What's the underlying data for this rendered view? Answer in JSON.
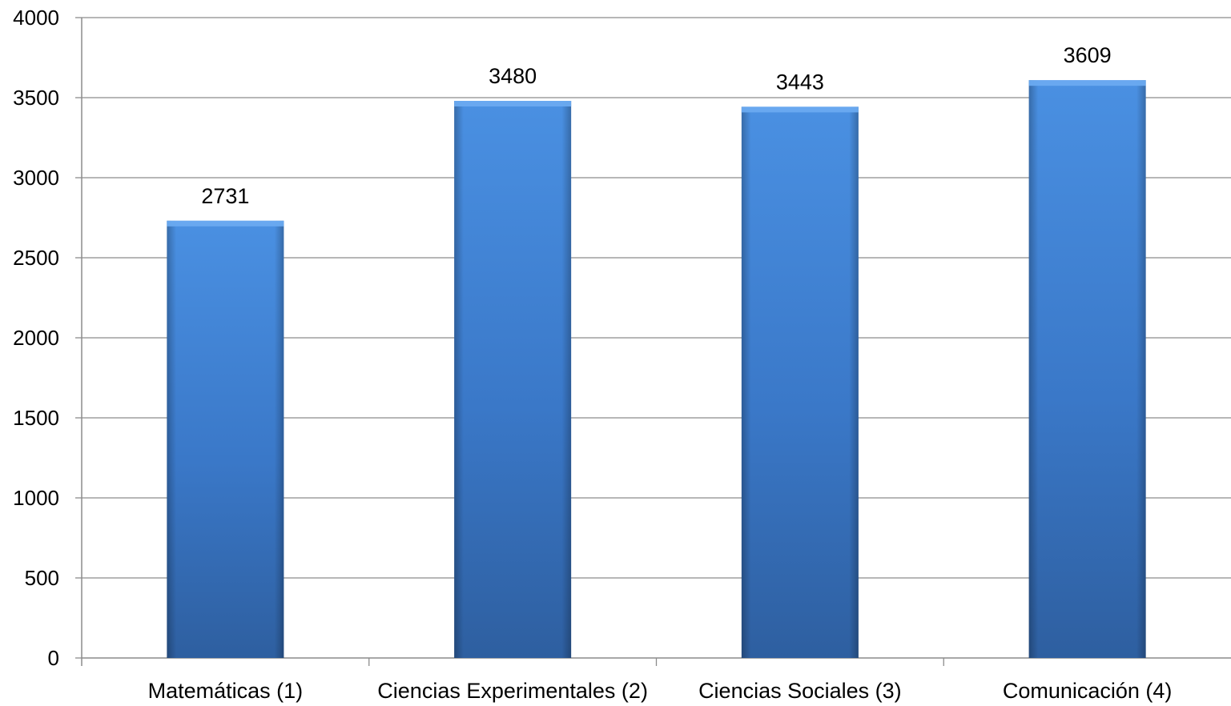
{
  "chart_data": {
    "type": "bar",
    "title": "",
    "xlabel": "",
    "ylabel": "",
    "categories": [
      "Matemáticas (1)",
      "Ciencias Experimentales (2)",
      "Ciencias Sociales (3)",
      "Comunicación (4)"
    ],
    "values": [
      2731,
      3480,
      3443,
      3609
    ],
    "data_labels": [
      "2731",
      "3480",
      "3443",
      "3609"
    ],
    "ylim": [
      0,
      4000
    ],
    "yticks": [
      0,
      500,
      1000,
      1500,
      2000,
      2500,
      3000,
      3500,
      4000
    ],
    "ytick_labels": [
      "0",
      "500",
      "1000",
      "1500",
      "2000",
      "2500",
      "3000",
      "3500",
      "4000"
    ],
    "grid": true,
    "legend": "none",
    "colors": {
      "bar_top": "#4a90e2",
      "bar_mid": "#3a78c8",
      "bar_bottom": "#2e5fa0",
      "bar_cap": "#6aaaf0",
      "gridline": "#8c8c8c",
      "axis": "#8c8c8c"
    }
  }
}
